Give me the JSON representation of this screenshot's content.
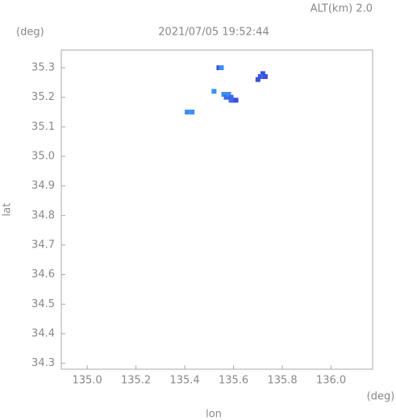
{
  "chart_data": {
    "type": "scatter",
    "title": "2021/07/05 19:52:44",
    "subtitle": "ALT(km) 2.0",
    "y_unit": "(deg)",
    "x_unit": "(deg)",
    "xlabel": "lon",
    "ylabel": "lat",
    "x": [
      135.54,
      135.55,
      135.7,
      135.71,
      135.72,
      135.72,
      135.73,
      135.52,
      135.56,
      135.57,
      135.57,
      135.58,
      135.59,
      135.6,
      135.61,
      135.59,
      135.41,
      135.43
    ],
    "y": [
      35.3,
      35.3,
      35.26,
      35.27,
      35.28,
      35.27,
      35.27,
      35.22,
      35.21,
      35.21,
      35.2,
      35.21,
      35.2,
      35.19,
      35.19,
      35.19,
      35.15,
      35.15
    ],
    "color": [
      "#3b4fe0",
      "#3c8ff2",
      "#3b4fe0",
      "#3b4fe0",
      "#3b4fe0",
      "#3c6ae8",
      "#3b4fe0",
      "#3c8ff2",
      "#3c8ff2",
      "#3c8ff2",
      "#3c6ae8",
      "#3c8ff2",
      "#3c6ae8",
      "#3b4fe0",
      "#3b4fe0",
      "#3c6ae8",
      "#3c8ff2",
      "#3c8ff2"
    ],
    "xlim": [
      134.894,
      136.17
    ],
    "ylim": [
      34.28,
      35.36
    ],
    "xticks": [
      {
        "value": 135,
        "label": "135.0"
      },
      135.2,
      135.4,
      135.6,
      135.8,
      {
        "value": 136,
        "label": "136.0"
      }
    ],
    "yticks": [
      34.3,
      34.4,
      34.5,
      34.6,
      34.7,
      34.8,
      34.9,
      {
        "value": 35,
        "label": "35.0"
      },
      35.1,
      35.2,
      35.3
    ]
  }
}
